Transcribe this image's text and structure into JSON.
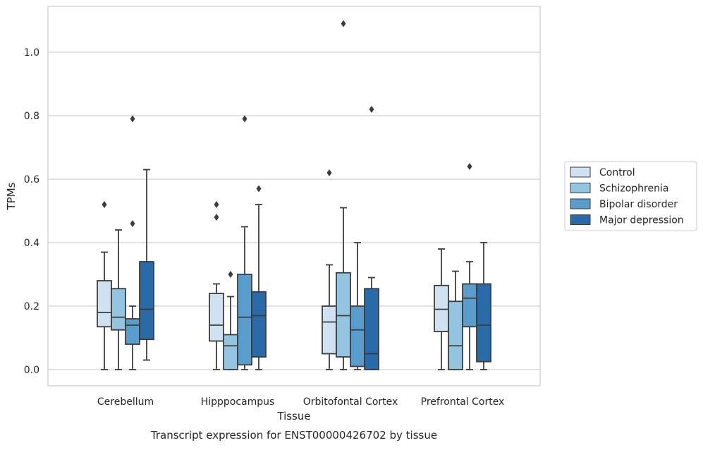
{
  "chart_data": {
    "type": "box",
    "caption": "Transcript expression for ENST00000426702 by tissue",
    "xlabel": "Tissue",
    "ylabel": "TPMs",
    "ylim": [
      -0.05,
      1.15
    ],
    "yticks": [
      0.0,
      0.2,
      0.4,
      0.6,
      0.8,
      1.0
    ],
    "ytick_labels": [
      "0.0",
      "0.2",
      "0.4",
      "0.6",
      "0.8",
      "1.0"
    ],
    "grid": "horizontal",
    "legend_position": "right",
    "categories": [
      "Cerebellum",
      "Hipppocampus",
      "Orbitofontal Cortex",
      "Prefrontal Cortex"
    ],
    "series": [
      {
        "name": "Control",
        "color": "#d0e1f2",
        "boxes": [
          {
            "whislo": 0.0,
            "q1": 0.135,
            "med": 0.18,
            "q3": 0.28,
            "whishi": 0.37,
            "fliers": [
              0.52
            ]
          },
          {
            "whislo": 0.0,
            "q1": 0.09,
            "med": 0.14,
            "q3": 0.24,
            "whishi": 0.27,
            "fliers": [
              0.48,
              0.52
            ]
          },
          {
            "whislo": 0.0,
            "q1": 0.05,
            "med": 0.15,
            "q3": 0.2,
            "whishi": 0.33,
            "fliers": [
              0.62
            ]
          },
          {
            "whislo": 0.0,
            "q1": 0.12,
            "med": 0.19,
            "q3": 0.265,
            "whishi": 0.38,
            "fliers": []
          }
        ]
      },
      {
        "name": "Schizophrenia",
        "color": "#94c4df",
        "boxes": [
          {
            "whislo": 0.0,
            "q1": 0.125,
            "med": 0.165,
            "q3": 0.255,
            "whishi": 0.44,
            "fliers": []
          },
          {
            "whislo": 0.0,
            "q1": 0.0,
            "med": 0.075,
            "q3": 0.11,
            "whishi": 0.23,
            "fliers": [
              0.3
            ]
          },
          {
            "whislo": 0.0,
            "q1": 0.04,
            "med": 0.17,
            "q3": 0.305,
            "whishi": 0.51,
            "fliers": [
              1.09
            ]
          },
          {
            "whislo": 0.0,
            "q1": 0.0,
            "med": 0.075,
            "q3": 0.215,
            "whishi": 0.31,
            "fliers": []
          }
        ]
      },
      {
        "name": "Bipolar disorder",
        "color": "#5a9dcc",
        "boxes": [
          {
            "whislo": 0.0,
            "q1": 0.08,
            "med": 0.14,
            "q3": 0.16,
            "whishi": 0.2,
            "fliers": [
              0.46,
              0.79
            ]
          },
          {
            "whislo": 0.0,
            "q1": 0.015,
            "med": 0.165,
            "q3": 0.3,
            "whishi": 0.45,
            "fliers": [
              0.79
            ]
          },
          {
            "whislo": 0.0,
            "q1": 0.01,
            "med": 0.125,
            "q3": 0.2,
            "whishi": 0.4,
            "fliers": []
          },
          {
            "whislo": 0.0,
            "q1": 0.135,
            "med": 0.225,
            "q3": 0.27,
            "whishi": 0.34,
            "fliers": [
              0.64
            ]
          }
        ]
      },
      {
        "name": "Major depression",
        "color": "#2b6aa9",
        "boxes": [
          {
            "whislo": 0.03,
            "q1": 0.095,
            "med": 0.19,
            "q3": 0.34,
            "whishi": 0.63,
            "fliers": []
          },
          {
            "whislo": 0.0,
            "q1": 0.04,
            "med": 0.17,
            "q3": 0.245,
            "whishi": 0.52,
            "fliers": [
              0.57
            ]
          },
          {
            "whislo": 0.0,
            "q1": 0.0,
            "med": 0.05,
            "q3": 0.255,
            "whishi": 0.29,
            "fliers": [
              0.82
            ]
          },
          {
            "whislo": 0.0,
            "q1": 0.025,
            "med": 0.14,
            "q3": 0.27,
            "whishi": 0.4,
            "fliers": []
          }
        ]
      }
    ]
  }
}
